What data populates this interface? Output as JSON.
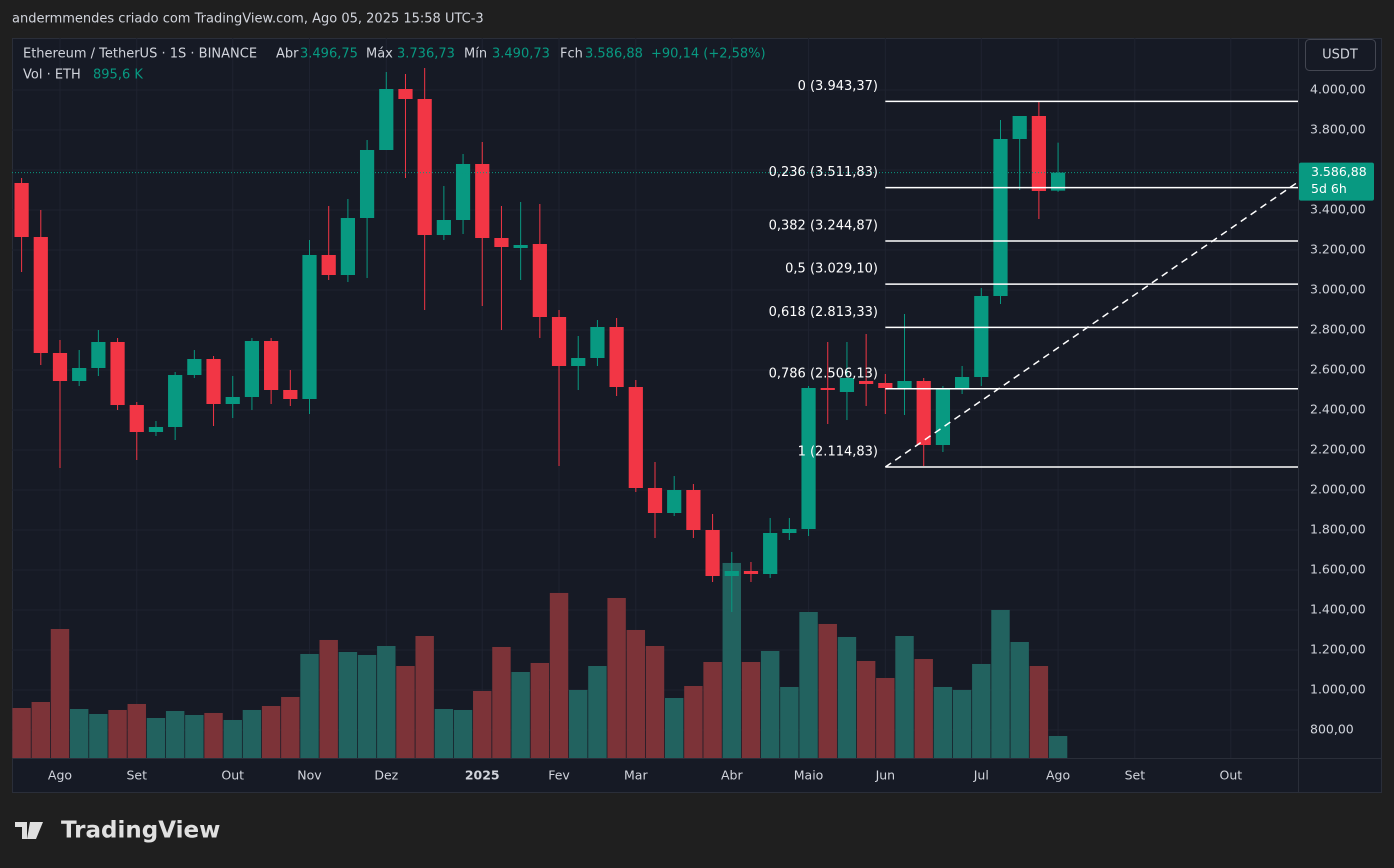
{
  "header": {
    "caption": "andermmendes criado com TradingView.com, Ago 05, 2025 15:58 UTC-3"
  },
  "legend": {
    "symbol": "Ethereum / TetherUS · 1S · BINANCE",
    "open_label": "Abr",
    "open": "3.496,75",
    "high_label": "Máx",
    "high": "3.736,73",
    "low_label": "Mín",
    "low": "3.490,73",
    "close_label": "Fch",
    "close": "3.586,88",
    "change": "+90,14 (+2,58%)",
    "volume_label": "Vol · ETH",
    "volume": "895,6 K"
  },
  "currency_button": "USDT",
  "footer": {
    "logo": "TradingView"
  },
  "chart_data": {
    "type": "candlestick",
    "categories": [
      null,
      null,
      "Ago",
      null,
      null,
      null,
      "Set",
      null,
      null,
      null,
      null,
      "Out",
      null,
      null,
      null,
      "Nov",
      null,
      null,
      null,
      "Dez",
      null,
      null,
      null,
      null,
      "2025",
      null,
      null,
      null,
      "Fev",
      null,
      null,
      null,
      "Mar",
      null,
      null,
      null,
      null,
      "Abr",
      null,
      null,
      null,
      "Maio",
      null,
      null,
      null,
      "Jun",
      null,
      null,
      null,
      null,
      "Jul",
      null,
      null,
      null,
      "Ago",
      null,
      null,
      null,
      "Set",
      null,
      null,
      null,
      null,
      "Out",
      null,
      null,
      null
    ],
    "open": [
      3535,
      3265,
      2685,
      2545,
      2610,
      2740,
      2425,
      2290,
      2315,
      2575,
      2655,
      2430,
      2465,
      2745,
      2500,
      2455,
      3175,
      3075,
      3360,
      3700,
      4005,
      3955,
      3275,
      3350,
      3630,
      3260,
      3210,
      3230,
      2865,
      2620,
      2660,
      2815,
      2515,
      2010,
      1885,
      2000,
      1800,
      1570,
      1595,
      1580,
      1785,
      1805,
      2510,
      2490,
      2545,
      2535,
      2510,
      2545,
      2225,
      2510,
      2565,
      2970,
      3755,
      3870,
      3496.75,
      null,
      null,
      null,
      null,
      null,
      null,
      null,
      null,
      null,
      null,
      null,
      null
    ],
    "high": [
      3560,
      3400,
      2750,
      2700,
      2800,
      2760,
      2440,
      2345,
      2590,
      2700,
      2670,
      2570,
      2760,
      2760,
      2600,
      3250,
      3420,
      3455,
      3750,
      4090,
      4080,
      4110,
      3520,
      3680,
      3740,
      3420,
      3440,
      3430,
      2900,
      2770,
      2850,
      2860,
      2550,
      2140,
      2070,
      2030,
      1880,
      1690,
      1640,
      1860,
      1860,
      2520,
      2740,
      2740,
      2780,
      2580,
      2880,
      2560,
      2520,
      2620,
      3010,
      3850,
      3870,
      3943,
      3736.73,
      null,
      null,
      null,
      null,
      null,
      null,
      null,
      null,
      null,
      null,
      null,
      null
    ],
    "low": [
      3090,
      2625,
      2110,
      2520,
      2570,
      2400,
      2150,
      2270,
      2250,
      2560,
      2320,
      2360,
      2400,
      2430,
      2420,
      2380,
      3050,
      3040,
      3060,
      3700,
      3560,
      2900,
      3250,
      3280,
      2920,
      2800,
      3050,
      2760,
      2120,
      2500,
      2620,
      2470,
      1990,
      1760,
      1870,
      1760,
      1540,
      1390,
      1540,
      1560,
      1750,
      1770,
      2330,
      2350,
      2420,
      2380,
      2375,
      2120,
      2190,
      2480,
      2520,
      2930,
      3500,
      3355,
      3490.73,
      null,
      null,
      null,
      null,
      null,
      null,
      null,
      null,
      null,
      null,
      null,
      null
    ],
    "close": [
      3265,
      2685,
      2545,
      2610,
      2740,
      2425,
      2290,
      2315,
      2575,
      2655,
      2430,
      2465,
      2745,
      2500,
      2455,
      3175,
      3075,
      3360,
      3700,
      4005,
      3955,
      3275,
      3350,
      3630,
      3260,
      3215,
      3225,
      2865,
      2620,
      2660,
      2815,
      2515,
      2010,
      1885,
      2000,
      1800,
      1570,
      1595,
      1580,
      1785,
      1805,
      2510,
      2500,
      2560,
      2530,
      2510,
      2545,
      2225,
      2510,
      2565,
      2970,
      3755,
      3870,
      3495,
      3586.88,
      null,
      null,
      null,
      null,
      null,
      null,
      null,
      null,
      null,
      null,
      null,
      null
    ],
    "volume": [
      2035,
      2279,
      5250,
      1994,
      1791,
      1954,
      2198,
      1628,
      1913,
      1750,
      1832,
      1547,
      1954,
      2116,
      2483,
      4233,
      4803,
      4314,
      4192,
      4558,
      3744,
      4965,
      1994,
      1954,
      2727,
      4518,
      3500,
      3867,
      6716,
      2768,
      3744,
      6512,
      5210,
      4558,
      2442,
      2930,
      3907,
      7937,
      3907,
      4355,
      2890,
      5942,
      5454,
      4925,
      3948,
      3256,
      4965,
      4029,
      2890,
      2768,
      3826,
      6024,
      4721,
      3744,
      895.6,
      null,
      null,
      null,
      null,
      null,
      null,
      null,
      null,
      null,
      null,
      null,
      null
    ],
    "up_color": "#089981",
    "down_color": "#f23645",
    "volume_up_color": "#22625f",
    "volume_down_color": "#7c3338",
    "ylim": [
      660,
      4260
    ],
    "volume_lim": [
      0,
      29300
    ],
    "yticks": [
      {
        "value": 800,
        "label": "800,00"
      },
      {
        "value": 1000,
        "label": "1.000,00"
      },
      {
        "value": 1200,
        "label": "1.200,00"
      },
      {
        "value": 1400,
        "label": "1.400,00"
      },
      {
        "value": 1600,
        "label": "1.600,00"
      },
      {
        "value": 1800,
        "label": "1.800,00"
      },
      {
        "value": 2000,
        "label": "2.000,00"
      },
      {
        "value": 2200,
        "label": "2.200,00"
      },
      {
        "value": 2400,
        "label": "2.400,00"
      },
      {
        "value": 2600,
        "label": "2.600,00"
      },
      {
        "value": 2800,
        "label": "2.800,00"
      },
      {
        "value": 3000,
        "label": "3.000,00"
      },
      {
        "value": 3200,
        "label": "3.200,00"
      },
      {
        "value": 3400,
        "label": "3.400,00"
      },
      {
        "value": 3600,
        "label": "3.600,00"
      },
      {
        "value": 3800,
        "label": "3.800,00"
      },
      {
        "value": 4000,
        "label": "4.000,00"
      }
    ],
    "grid": true,
    "fib_levels": [
      {
        "value": 3943.37,
        "label": "0 (3.943,37)"
      },
      {
        "value": 3511.83,
        "label": "0,236 (3.511,83)"
      },
      {
        "value": 3244.87,
        "label": "0,382 (3.244,87)"
      },
      {
        "value": 3029.1,
        "label": "0,5 (3.029,10)"
      },
      {
        "value": 2813.33,
        "label": "0,618 (2.813,33)"
      },
      {
        "value": 2506.13,
        "label": "0,786 (2.506,13)"
      },
      {
        "value": 2114.83,
        "label": "1 (2.114,83)"
      }
    ],
    "trendline": [
      2114.83,
      3540
    ],
    "last_price": {
      "label": "3.586,88",
      "countdown": "5d 6h"
    }
  }
}
